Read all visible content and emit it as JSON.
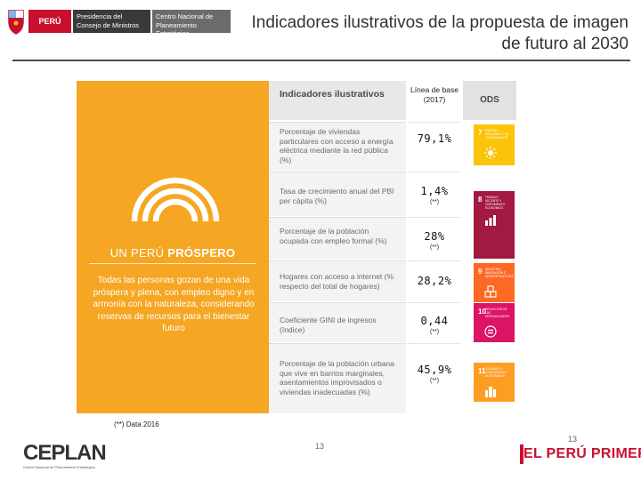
{
  "header": {
    "logo_peru": "PERÚ",
    "logo_pcm": "Presidencia del Consejo de Ministros",
    "logo_ceplan": "Centro Nacional de Planeamiento Estratégico",
    "title": "Indicadores ilustrativos de la propuesta de imagen de futuro al 2030"
  },
  "panel": {
    "heading_light": "UN PERÚ ",
    "heading_bold": "PRÓSPERO",
    "description": "Todas las personas gozan de una vida próspera y plena, con empleo digno y en armonía con la naturaleza, considerando reservas de recursos para el bienestar futuro",
    "color": "#f5a623"
  },
  "table": {
    "header_indicators": "Indicadores ilustrativos",
    "header_baseline": "Línea de base (2017)",
    "header_ods": "ODS",
    "rows": [
      {
        "indicator": "Porcentaje de viviendas particulares con acceso a energía eléctrica mediante la red pública (%)",
        "value": "79,1%",
        "note": "",
        "ods_number": "7",
        "ods_label": "ENERGÍA ASEQUIBLE Y NO CONTAMINANTE",
        "ods_icon": "sun-icon",
        "ods_color": "#fcc30b"
      },
      {
        "indicator": "Tasa de crecimiento anual del PBI per cápita (%)",
        "value": "1,4%",
        "note": "(**)",
        "ods_number": "8",
        "ods_label": "TRABAJO DECENTE Y CRECIMIENTO ECONÓMICO",
        "ods_icon": "growth-chart-icon",
        "ods_color": "#a21942"
      },
      {
        "indicator": "Porcentaje de la población ocupada con empleo formal (%)",
        "value": "28%",
        "note": "(**)",
        "ods_number": "",
        "ods_label": "",
        "ods_icon": "",
        "ods_color": "#a21942"
      },
      {
        "indicator": "Hogares con acceso a internet (% respecto del total de hogares)",
        "value": "28,2%",
        "note": "",
        "ods_number": "9",
        "ods_label": "INDUSTRIA, INNOVACIÓN E INFRAESTRUCTURA",
        "ods_icon": "cubes-icon",
        "ods_color": "#fd6925"
      },
      {
        "indicator": "Coeficiente GINI de ingresos (índice)",
        "value": "0,44",
        "note": "(**)",
        "ods_number": "10",
        "ods_label": "REDUCCIÓN DE LAS DESIGUALDADES",
        "ods_icon": "equality-icon",
        "ods_color": "#dd1367"
      },
      {
        "indicator": "Porcentaje de la población urbana que vive en barrios marginales, asentamientos improvisados o viviendas inadecuadas (%)",
        "value": "45,9%",
        "note": "(**)",
        "ods_number": "11",
        "ods_label": "CIUDADES Y COMUNIDADES SOSTENIBLES",
        "ods_icon": "buildings-icon",
        "ods_color": "#fd9d24"
      }
    ]
  },
  "footer": {
    "footnote": "(**) Data 2016",
    "ceplan_word": "CEPLAN",
    "ceplan_tagline": "Centro Nacional de Planeamiento Estratégico",
    "page_number": "13",
    "page_number_2": "13",
    "brand": "EL PERÚ PRIMERO",
    "brand_color": "#c8102e"
  }
}
